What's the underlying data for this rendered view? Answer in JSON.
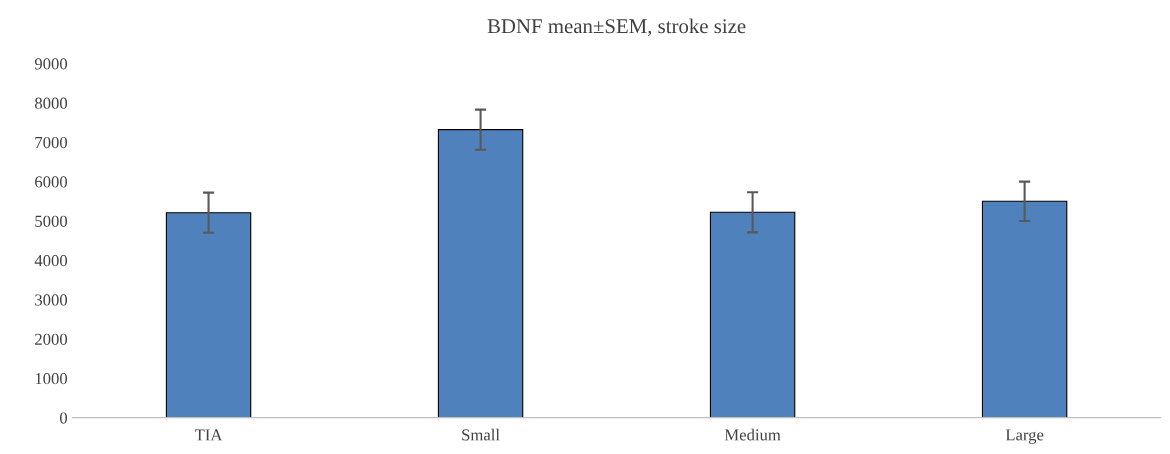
{
  "chart_data": {
    "type": "bar",
    "title": "BDNF mean±SEM, stroke size",
    "categories": [
      "TIA",
      "Small",
      "Medium",
      "Large"
    ],
    "values": [
      5210,
      7320,
      5220,
      5500
    ],
    "errors": [
      510,
      510,
      510,
      500
    ],
    "color": "#4f81bd",
    "ylim": [
      0,
      9000
    ],
    "yticks": [
      0,
      1000,
      2000,
      3000,
      4000,
      5000,
      6000,
      7000,
      8000,
      9000
    ],
    "grid": false,
    "legend": false
  }
}
